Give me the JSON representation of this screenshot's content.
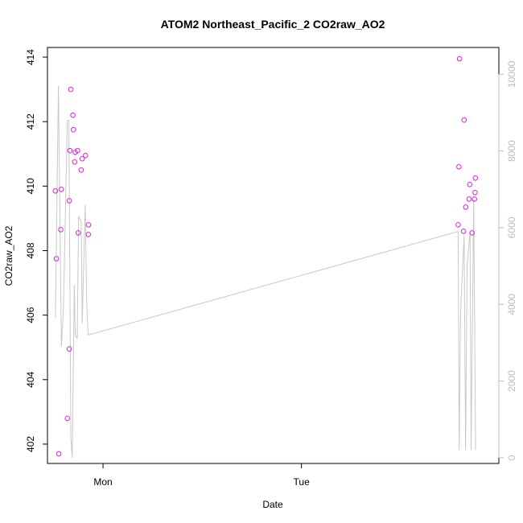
{
  "chart_data": {
    "type": "scatter",
    "title": "ATOM2 Northeast_Pacific_2 CO2raw_AO2",
    "xlabel": "Date",
    "ylabel": "CO2raw_AO2",
    "x_ticks": [
      "Mon",
      "Tue"
    ],
    "x_tick_days": [
      1,
      2
    ],
    "xlim_days": [
      0.72,
      2.995
    ],
    "ylim": [
      401.4,
      414.3
    ],
    "y_ticks": [
      402,
      404,
      406,
      408,
      410,
      412,
      414
    ],
    "secondary_ylim": [
      -150,
      10700
    ],
    "secondary_y_ticks": [
      0,
      2000,
      4000,
      6000,
      8000,
      10000
    ],
    "colors": {
      "points": "#e31ce3",
      "line": "#c8c8c8",
      "secondary_axis": "#bdbdbd",
      "axes": "#000000"
    },
    "series": [
      {
        "type": "points",
        "axis": "primary",
        "points": [
          [
            0.76,
            409.85
          ],
          [
            0.765,
            407.75
          ],
          [
            0.777,
            401.7
          ],
          [
            0.787,
            408.65
          ],
          [
            0.79,
            409.9
          ],
          [
            0.82,
            402.8
          ],
          [
            0.83,
            404.95
          ],
          [
            0.83,
            409.55
          ],
          [
            0.833,
            411.1
          ],
          [
            0.838,
            413.0
          ],
          [
            0.848,
            412.2
          ],
          [
            0.851,
            411.75
          ],
          [
            0.857,
            410.75
          ],
          [
            0.86,
            411.05
          ],
          [
            0.872,
            411.1
          ],
          [
            0.875,
            408.55
          ],
          [
            0.89,
            410.5
          ],
          [
            0.895,
            410.85
          ],
          [
            0.912,
            410.95
          ],
          [
            0.926,
            408.5
          ],
          [
            0.927,
            408.8
          ],
          [
            2.79,
            408.8
          ],
          [
            2.794,
            410.6
          ],
          [
            2.797,
            413.95
          ],
          [
            2.817,
            408.6
          ],
          [
            2.82,
            412.05
          ],
          [
            2.828,
            409.35
          ],
          [
            2.845,
            409.6
          ],
          [
            2.848,
            410.05
          ],
          [
            2.86,
            408.55
          ],
          [
            2.872,
            409.6
          ],
          [
            2.875,
            409.8
          ],
          [
            2.877,
            410.25
          ]
        ]
      },
      {
        "type": "line",
        "axis": "secondary",
        "points": [
          [
            0.76,
            3650
          ],
          [
            0.775,
            9700
          ],
          [
            0.79,
            2900
          ],
          [
            0.8,
            3800
          ],
          [
            0.82,
            8800
          ],
          [
            0.828,
            8800
          ],
          [
            0.838,
            500
          ],
          [
            0.845,
            0
          ],
          [
            0.855,
            4500
          ],
          [
            0.86,
            3200
          ],
          [
            0.87,
            3100
          ],
          [
            0.877,
            6300
          ],
          [
            0.89,
            6150
          ],
          [
            0.895,
            3500
          ],
          [
            0.91,
            6600
          ],
          [
            0.918,
            4000
          ],
          [
            0.925,
            3200
          ],
          [
            2.79,
            5900
          ],
          [
            2.795,
            200
          ],
          [
            2.802,
            3800
          ],
          [
            2.82,
            5800
          ],
          [
            2.827,
            200
          ],
          [
            2.835,
            5000
          ],
          [
            2.85,
            5900
          ],
          [
            2.855,
            200
          ],
          [
            2.868,
            6750
          ],
          [
            2.878,
            200
          ]
        ]
      }
    ],
    "grid": false,
    "legend": "none"
  }
}
